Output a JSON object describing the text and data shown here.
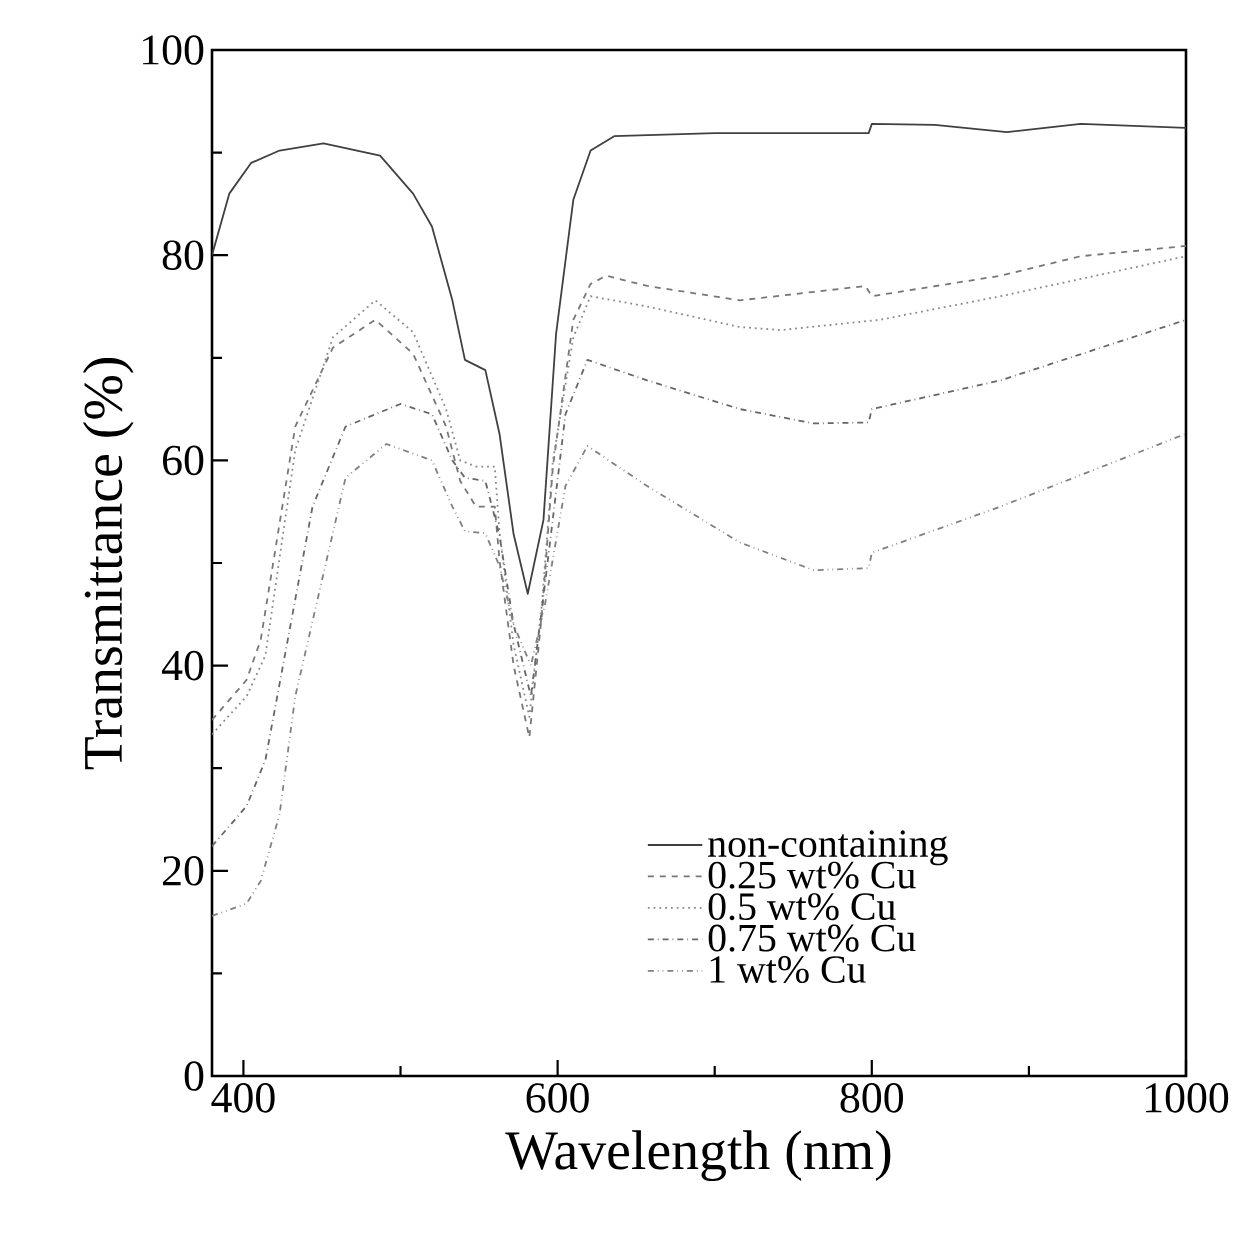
{
  "chart_data": {
    "type": "line",
    "xlabel": "Wavelength (nm)",
    "ylabel": "Transmittance (%)",
    "xlim": [
      380,
      1000
    ],
    "ylim": [
      0,
      100
    ],
    "xticks": [
      400,
      600,
      800,
      1000
    ],
    "yticks": [
      0,
      20,
      40,
      60,
      80,
      100
    ],
    "legend": "bottom right",
    "grid": false,
    "series": [
      {
        "name": "non-containing",
        "color": "#404040",
        "line_style": "solid",
        "x": [
          380,
          391,
          405,
          423,
          451,
          487,
          508,
          520,
          533,
          541,
          554,
          563,
          572,
          581,
          591,
          599,
          610,
          621,
          636,
          700,
          798,
          800,
          840,
          886,
          933,
          1000
        ],
        "values": [
          80,
          86,
          89,
          90.2,
          90.9,
          89.7,
          86,
          82.8,
          75.6,
          69.8,
          68.8,
          62.6,
          52.8,
          47,
          54.2,
          72.3,
          85.4,
          90.2,
          91.6,
          91.9,
          91.9,
          92.8,
          92.7,
          92,
          92.8,
          92.4
        ]
      },
      {
        "name": "0.25 wt% Cu",
        "color": "#777777",
        "line_style": "dashed",
        "x": [
          380,
          402,
          411,
          433,
          457,
          484,
          508,
          529,
          538,
          548,
          560,
          563,
          572,
          582,
          590,
          597,
          610,
          621,
          631,
          657,
          716,
          796,
          800,
          882,
          933,
          1000
        ],
        "values": [
          34.7,
          38.6,
          42.5,
          63.3,
          71,
          73.7,
          70.4,
          63.3,
          58,
          55.5,
          55.5,
          50.3,
          40,
          33,
          45,
          59.4,
          73.7,
          77.2,
          78,
          77,
          75.6,
          77,
          76,
          78,
          79.9,
          80.9
        ]
      },
      {
        "name": "0.5 wt% Cu",
        "color": "#888888",
        "line_style": "dotted",
        "x": [
          380,
          402,
          414,
          433,
          457,
          484,
          508,
          529,
          538,
          548,
          560,
          563,
          572,
          582,
          590,
          597,
          610,
          621,
          657,
          716,
          742,
          805,
          882,
          1000
        ],
        "values": [
          33.3,
          37,
          41,
          61,
          72,
          75.6,
          72.5,
          65,
          60,
          59.4,
          59.4,
          53,
          42,
          35,
          46,
          60,
          72,
          76,
          75,
          73,
          72.7,
          73.7,
          76,
          79.9
        ]
      },
      {
        "name": "0.75 wt% Cu",
        "color": "#666666",
        "line_style": "dashdot",
        "x": [
          380,
          402,
          414,
          444,
          465,
          500,
          520,
          533,
          541,
          554,
          563,
          572,
          583,
          592,
          605,
          619,
          657,
          716,
          763,
          798,
          800,
          882,
          1000
        ],
        "values": [
          22.4,
          26.3,
          30.8,
          55.5,
          63.3,
          65.5,
          64.5,
          60,
          58.3,
          58,
          52.7,
          44,
          37,
          48,
          64.5,
          69.8,
          67.8,
          65,
          63.6,
          63.7,
          65,
          67.8,
          73.7
        ]
      },
      {
        "name": "1 wt% Cu",
        "color": "#808080",
        "line_style": "dashdotdot",
        "x": [
          380,
          402,
          411,
          423,
          433,
          465,
          491,
          520,
          533,
          541,
          554,
          563,
          572,
          583,
          592,
          605,
          619,
          657,
          716,
          763,
          798,
          800,
          882,
          1000
        ],
        "values": [
          15.6,
          16.8,
          19,
          25.5,
          37,
          58.3,
          61.6,
          60,
          55.5,
          53.1,
          52.9,
          49.7,
          44,
          40,
          46,
          57.5,
          61.4,
          57.5,
          52,
          49.3,
          49.5,
          51,
          55.5,
          62.6
        ]
      }
    ]
  }
}
